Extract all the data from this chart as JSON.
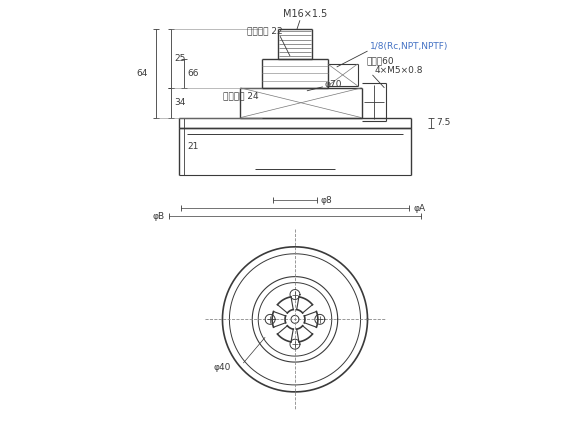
{
  "bg_color": "#ffffff",
  "lc": "#3a3a3a",
  "bc": "#4472C4",
  "ann_m16": "M16×1.5",
  "ann_hex22": "六角対辺 22",
  "ann_hex24": "六角対辺 24",
  "ann_nihen60": "二面幠60",
  "ann_4m5": "4×M5×0.8",
  "ann_blue": "1/8(Rc,NPT,NPTF)",
  "ann_phi70": "φ70",
  "ann_phi8": "φ8",
  "ann_phiA": "φA",
  "ann_phiB": "φB",
  "ann_phi40": "φ40",
  "ann_25": "25",
  "ann_66": "66",
  "ann_64": "64",
  "ann_34": "34",
  "ann_21": "21",
  "ann_75": "7.5"
}
